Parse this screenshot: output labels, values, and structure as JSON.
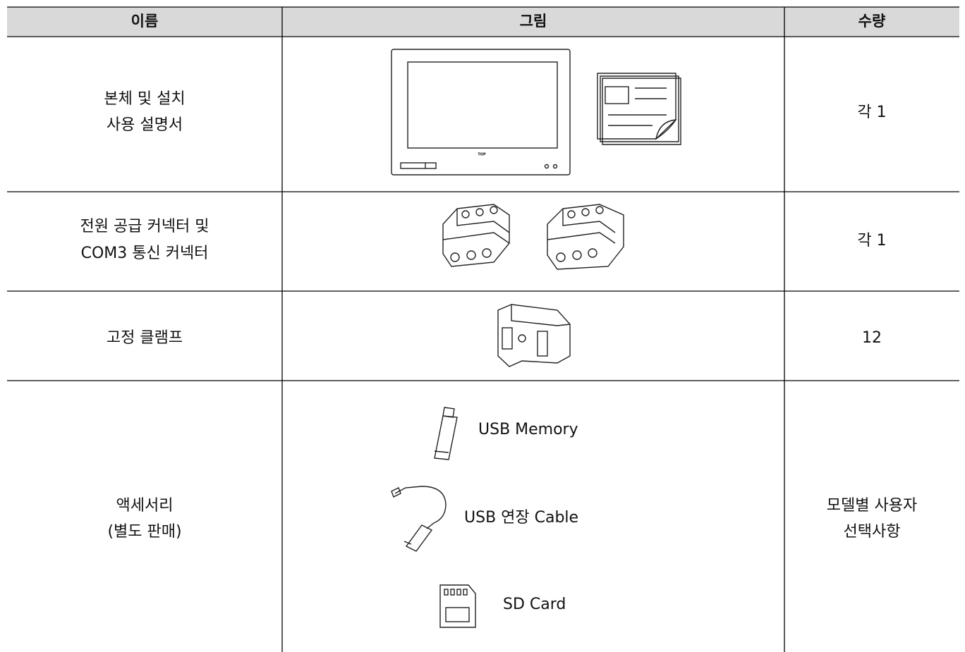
{
  "header": [
    "이름",
    "그림",
    "수량"
  ],
  "rows": [
    {
      "name": [
        "본체 및 설치",
        "사용 설명서"
      ],
      "picture_label": "TOP",
      "quantity": [
        "각 1"
      ]
    },
    {
      "name": [
        "전원 공급 커넥터 및",
        "COM3 통신 커넥터"
      ],
      "quantity": [
        "각 1"
      ]
    },
    {
      "name": [
        "고정 클램프"
      ],
      "quantity": [
        "12"
      ]
    },
    {
      "name": [
        "액세서리",
        "(별도 판매)"
      ],
      "items": [
        "USB Memory",
        "USB 연장 Cable",
        "SD Card"
      ],
      "quantity": [
        "모델별 사용자",
        "선택사항"
      ]
    }
  ]
}
